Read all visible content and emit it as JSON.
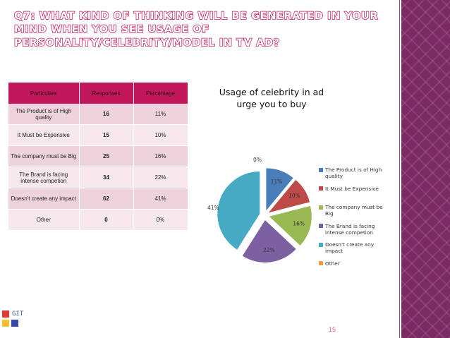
{
  "title": "Q7: What kind of thinking will be generated in your mind when you see usage of personality/celebrity/model in TV ad?",
  "table": {
    "headers": [
      "Particulars",
      "Responses",
      "Percentage"
    ],
    "rows": [
      {
        "particular": "The Product is of High quality",
        "responses": "16",
        "percentage": "11%"
      },
      {
        "particular": "It Must be Expensive",
        "responses": "15",
        "percentage": "10%"
      },
      {
        "particular": "The company must be Big",
        "responses": "25",
        "percentage": "16%"
      },
      {
        "particular": "The Brand is facing intense competion",
        "responses": "34",
        "percentage": "22%"
      },
      {
        "particular": "Doesn't create any impact",
        "responses": "62",
        "percentage": "41%"
      },
      {
        "particular": "Other",
        "responses": "0",
        "percentage": "0%"
      }
    ]
  },
  "chart_data": {
    "type": "pie",
    "title": "Usage of celebrity in ad urge you to buy",
    "categories": [
      "The Product is of High quality",
      "It Must be Expensive",
      "The company must be Big",
      "The Brand is facing intense competion",
      "Doesn't create any impact",
      "Other"
    ],
    "values": [
      11,
      10,
      16,
      22,
      41,
      0
    ],
    "labels": [
      "11%",
      "10%",
      "16%",
      "22%",
      "41%",
      "0%"
    ],
    "colors": [
      "#4a7ebb",
      "#be4b48",
      "#98b954",
      "#7d60a0",
      "#46aac5",
      "#f39a4a"
    ],
    "legend": "right",
    "exploded": true
  },
  "slide_number": "15",
  "logo": {
    "text": "GIT",
    "colors": [
      "#e53935",
      "#fbc02d",
      "#3949ab"
    ]
  }
}
